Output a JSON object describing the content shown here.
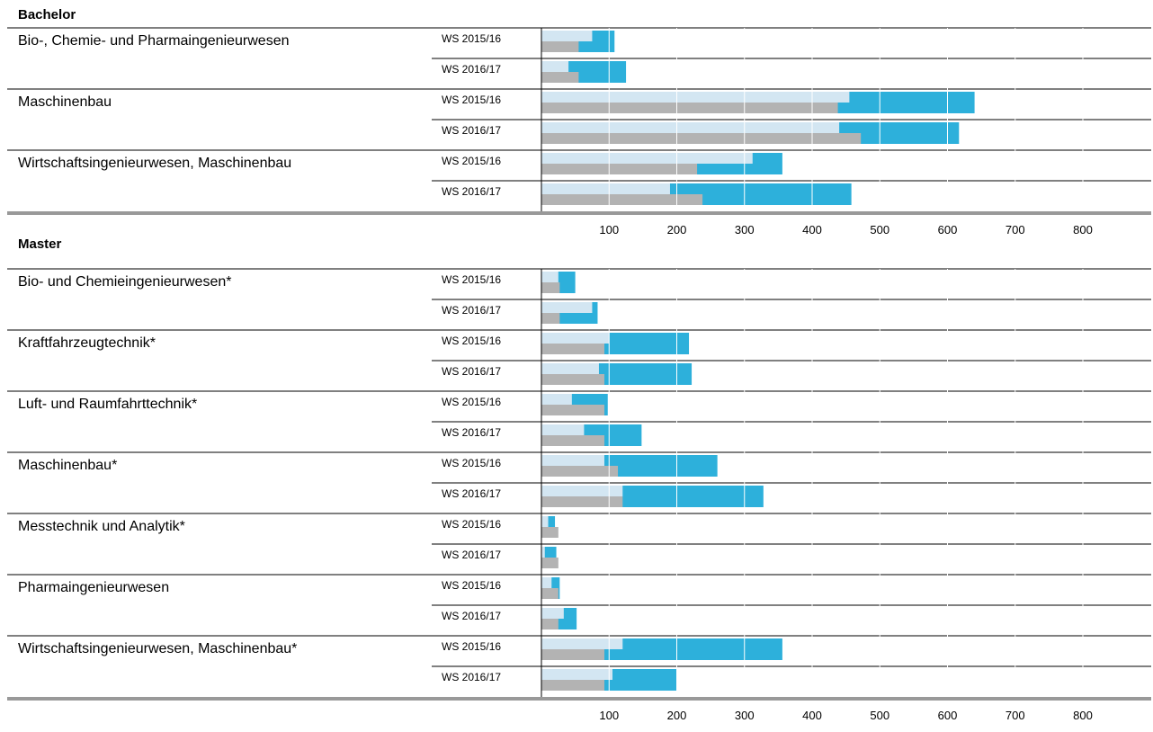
{
  "chart_data": {
    "type": "bar",
    "colors": {
      "light": "#d3e6f2",
      "blue": "#2db0db",
      "grey": "#b3b3b3",
      "rule": "#000000",
      "thick_rule": "#999999"
    },
    "x_ticks": [
      100,
      200,
      300,
      400,
      500,
      600,
      700,
      800
    ],
    "xlim": [
      0,
      900
    ],
    "sections": [
      {
        "title": "Bachelor",
        "programs": [
          {
            "name": "Bio-, Chemie- und Pharmaingenieurwesen",
            "rows": [
              {
                "semester": "WS 2015/16",
                "light": 75,
                "blue": 108,
                "grey": 55
              },
              {
                "semester": "WS 2016/17",
                "light": 40,
                "blue": 125,
                "grey": 55
              }
            ]
          },
          {
            "name": "Maschinenbau",
            "rows": [
              {
                "semester": "WS 2015/16",
                "light": 455,
                "blue": 640,
                "grey": 438
              },
              {
                "semester": "WS 2016/17",
                "light": 440,
                "blue": 617,
                "grey": 472
              }
            ]
          },
          {
            "name": "Wirtschaftsingenieurwesen, Maschinenbau",
            "rows": [
              {
                "semester": "WS 2015/16",
                "light": 312,
                "blue": 356,
                "grey": 230
              },
              {
                "semester": "WS 2016/17",
                "light": 190,
                "blue": 458,
                "grey": 238
              }
            ]
          }
        ]
      },
      {
        "title": "Master",
        "programs": [
          {
            "name": "Bio- und Chemieingenieurwesen*",
            "rows": [
              {
                "semester": "WS 2015/16",
                "light": 25,
                "blue": 50,
                "grey": 27
              },
              {
                "semester": "WS 2016/17",
                "light": 75,
                "blue": 83,
                "grey": 27
              }
            ]
          },
          {
            "name": "Kraftfahrzeugtechnik*",
            "rows": [
              {
                "semester": "WS 2015/16",
                "light": 100,
                "blue": 218,
                "grey": 93
              },
              {
                "semester": "WS 2016/17",
                "light": 85,
                "blue": 222,
                "grey": 93
              }
            ]
          },
          {
            "name": "Luft- und Raumfahrttechnik*",
            "rows": [
              {
                "semester": "WS 2015/16",
                "light": 45,
                "blue": 98,
                "grey": 93
              },
              {
                "semester": "WS 2016/17",
                "light": 63,
                "blue": 148,
                "grey": 93
              }
            ]
          },
          {
            "name": "Maschinenbau*",
            "rows": [
              {
                "semester": "WS 2015/16",
                "light": 93,
                "blue": 260,
                "grey": 113
              },
              {
                "semester": "WS 2016/17",
                "light": 120,
                "blue": 328,
                "grey": 120
              }
            ]
          },
          {
            "name": "Messtechnik und Analytik*",
            "rows": [
              {
                "semester": "WS 2015/16",
                "light": 10,
                "blue": 20,
                "grey": 25
              },
              {
                "semester": "WS 2016/17",
                "light": 5,
                "blue": 22,
                "grey": 25
              }
            ]
          },
          {
            "name": "Pharmaingenieurwesen",
            "rows": [
              {
                "semester": "WS 2015/16",
                "light": 15,
                "blue": 27,
                "grey": 25
              },
              {
                "semester": "WS 2016/17",
                "light": 33,
                "blue": 52,
                "grey": 25
              }
            ]
          },
          {
            "name": "Wirtschaftsingenieurwesen, Maschinenbau*",
            "rows": [
              {
                "semester": "WS 2015/16",
                "light": 120,
                "blue": 356,
                "grey": 93
              },
              {
                "semester": "WS 2016/17",
                "light": 105,
                "blue": 200,
                "grey": 93
              }
            ]
          }
        ]
      }
    ]
  }
}
